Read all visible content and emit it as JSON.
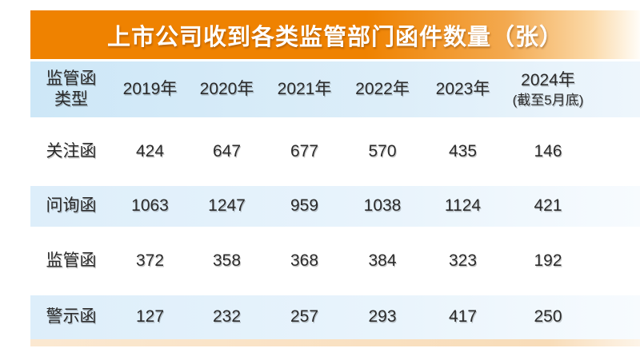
{
  "title": "上市公司收到各类监管部门函件数量（张）",
  "display": {
    "type_line1": "监管函",
    "type_line2": "类型",
    "last_col_line1": "2024年",
    "last_col_line2": "(截至5月底)"
  },
  "colors": {
    "banner_orange": "#ef8200",
    "banner_fade_right": "#fdf3e4",
    "header_blue": "#cfe7f7",
    "row_stripe_blue": "#ddeefa",
    "bottom_strip_peach": "#f8dcb8",
    "text_dark": "#2b2b2b",
    "title_white": "#ffffff"
  },
  "chart_data": {
    "type": "table",
    "title": "上市公司收到各类监管部门函件数量（张）",
    "columns": [
      "监管函类型",
      "2019年",
      "2020年",
      "2021年",
      "2022年",
      "2023年",
      "2024年(截至5月底)"
    ],
    "rows": [
      {
        "label": "关注函",
        "values": [
          424,
          647,
          677,
          570,
          435,
          146
        ]
      },
      {
        "label": "问询函",
        "values": [
          1063,
          1247,
          959,
          1038,
          1124,
          421
        ]
      },
      {
        "label": "监管函",
        "values": [
          372,
          358,
          368,
          384,
          323,
          192
        ]
      },
      {
        "label": "警示函",
        "values": [
          127,
          232,
          257,
          293,
          417,
          250
        ]
      }
    ]
  }
}
